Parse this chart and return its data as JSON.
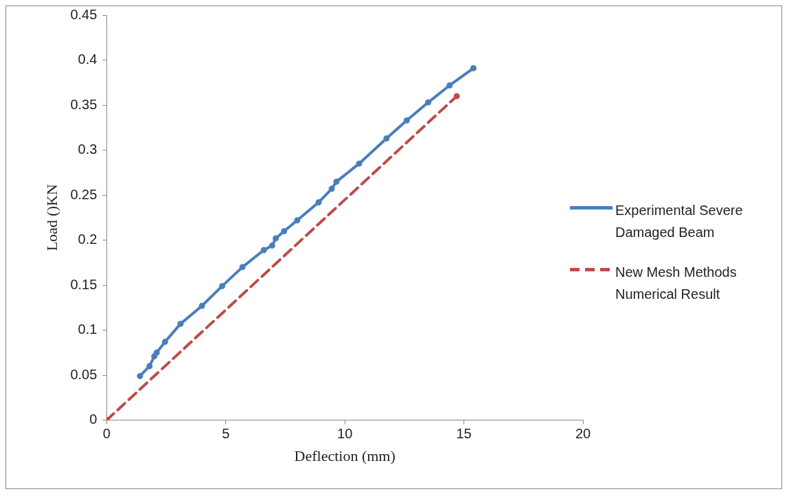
{
  "chart_data": {
    "type": "line",
    "xlabel": "Deflection (mm)",
    "ylabel": "Load ()KN",
    "xlim": [
      0,
      20
    ],
    "xticks": [
      0,
      5,
      10,
      15,
      20
    ],
    "ylim": [
      0,
      0.45
    ],
    "yticks": [
      0,
      0.05,
      0.1,
      0.15,
      0.2,
      0.25,
      0.3,
      0.35,
      0.4,
      0.45
    ],
    "grid": false,
    "legend": "right",
    "marker": "circle",
    "series": [
      {
        "name": "Experimental Severe Damaged Beam",
        "color": "#4a7ebb",
        "line_style": "solid",
        "x": [
          1.4,
          1.8,
          2.0,
          2.1,
          2.45,
          3.1,
          4.0,
          4.85,
          5.7,
          6.6,
          6.95,
          7.1,
          7.45,
          8.0,
          8.9,
          9.45,
          9.65,
          10.6,
          11.75,
          12.6,
          13.5,
          14.4,
          15.4
        ],
        "values": [
          0.049,
          0.06,
          0.071,
          0.075,
          0.087,
          0.107,
          0.127,
          0.149,
          0.17,
          0.189,
          0.194,
          0.202,
          0.21,
          0.222,
          0.242,
          0.257,
          0.265,
          0.285,
          0.313,
          0.333,
          0.353,
          0.372,
          0.391
        ]
      },
      {
        "name": "New Mesh Methods Numerical Result",
        "color": "#be4b48",
        "line_style": "dashed",
        "x": [
          0,
          14.7
        ],
        "values": [
          0,
          0.36
        ]
      }
    ]
  }
}
